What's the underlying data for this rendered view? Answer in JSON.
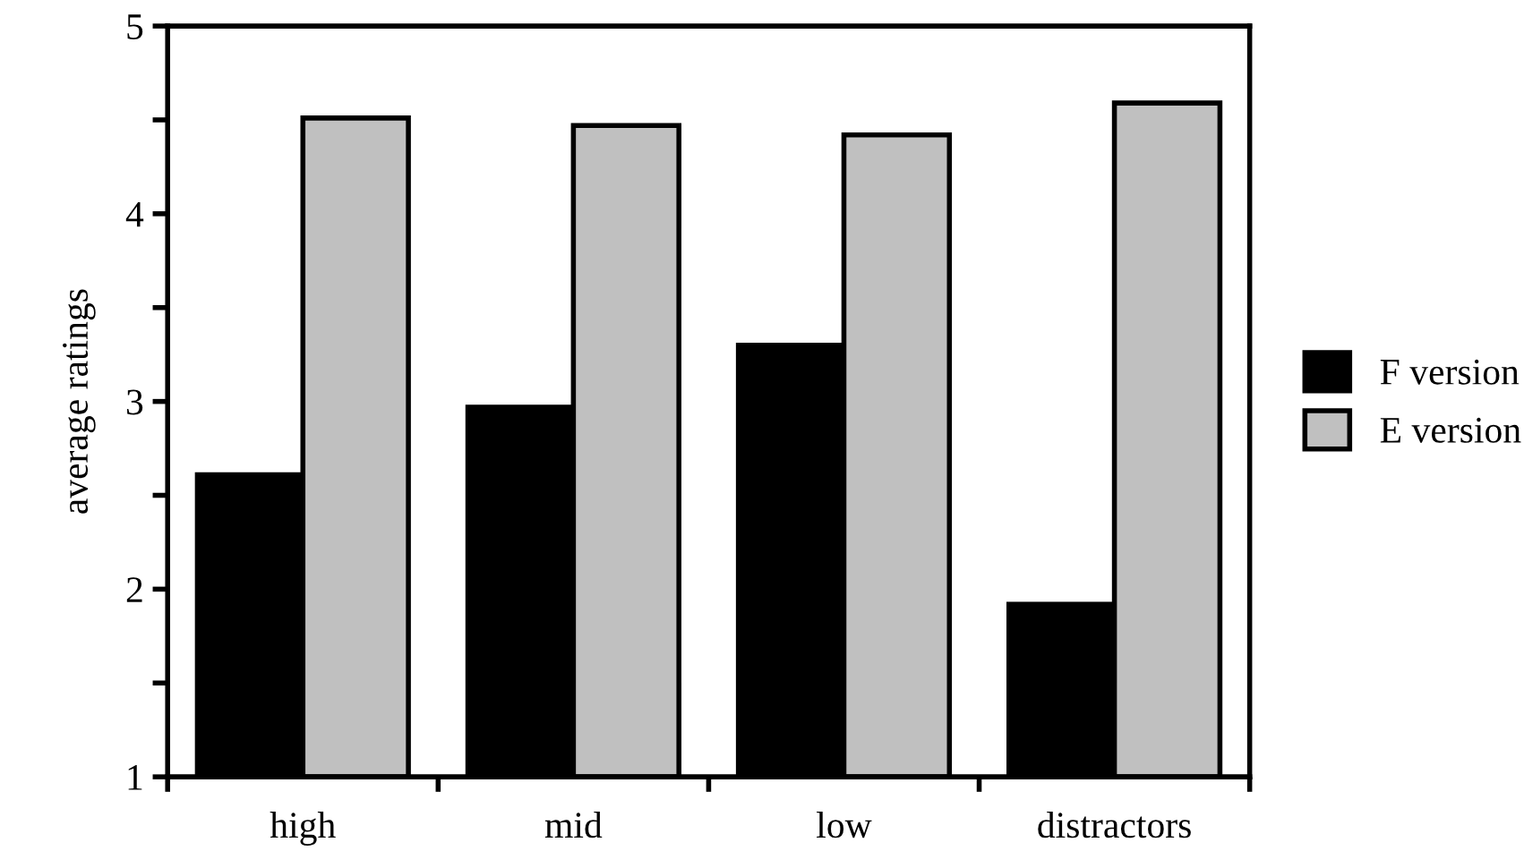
{
  "chart_data": {
    "type": "bar",
    "ylabel": "average ratings",
    "categories": [
      "high",
      "mid",
      "low",
      "distractors"
    ],
    "series": [
      {
        "name": "F version",
        "color": "#000000",
        "values": [
          2.61,
          2.97,
          3.3,
          1.92
        ]
      },
      {
        "name": "E version",
        "color": "#c0c0c0",
        "values": [
          4.51,
          4.47,
          4.42,
          4.59
        ]
      }
    ],
    "ylim": [
      1,
      5
    ],
    "yticks": [
      1,
      {
        "value": 1.5,
        "label": null
      },
      2,
      {
        "value": 2.5,
        "label": null
      },
      3,
      {
        "value": 3.5,
        "label": null
      },
      4,
      {
        "value": 4.5,
        "label": null
      },
      5
    ],
    "grid": false,
    "legend": "right"
  }
}
